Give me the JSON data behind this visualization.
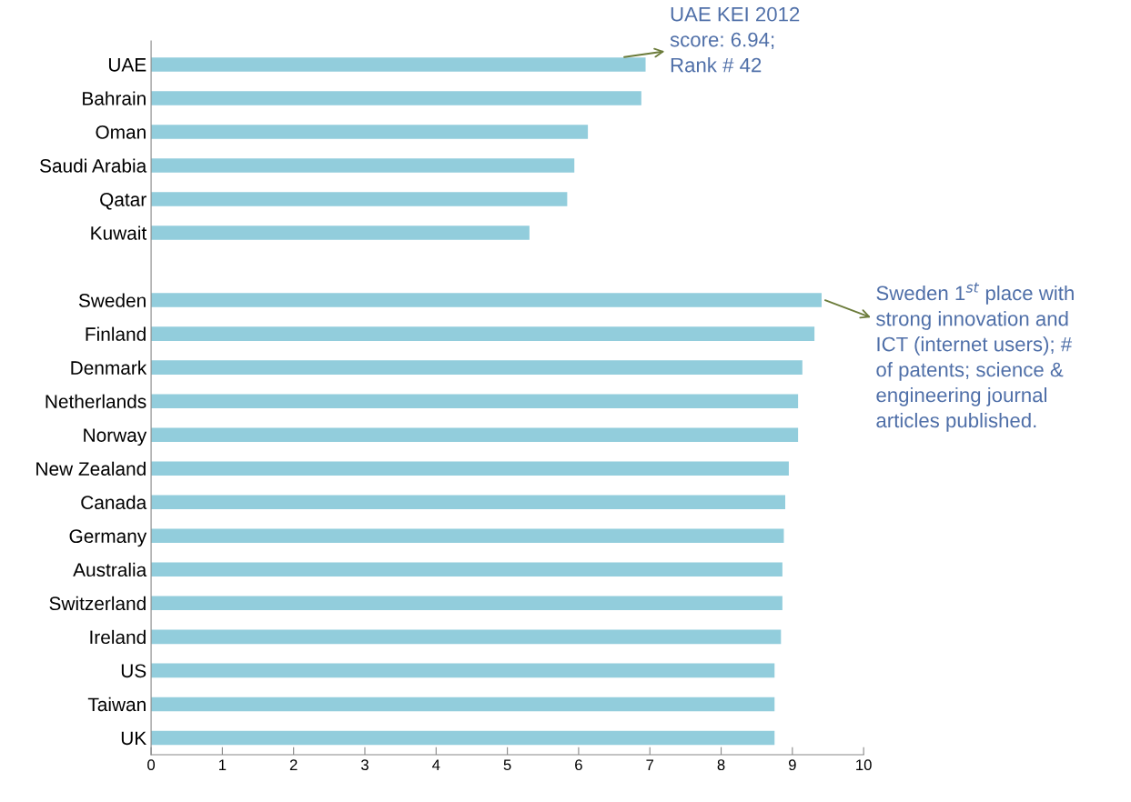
{
  "chart_data": {
    "type": "bar",
    "orientation": "horizontal",
    "categories": [
      "UAE",
      "Bahrain",
      "Oman",
      "Saudi Arabia",
      "Qatar",
      "Kuwait",
      null,
      "Sweden",
      "Finland",
      "Denmark",
      "Netherlands",
      "Norway",
      "New Zealand",
      "Canada",
      "Germany",
      "Australia",
      "Switzerland",
      "Ireland",
      "US",
      "Taiwan",
      "UK"
    ],
    "values": [
      6.94,
      6.88,
      6.13,
      5.94,
      5.84,
      5.31,
      null,
      9.41,
      9.31,
      9.14,
      9.08,
      9.08,
      8.95,
      8.9,
      8.88,
      8.86,
      8.86,
      8.84,
      8.75,
      8.75,
      8.75
    ],
    "color": "#92cddc",
    "xlim": [
      0,
      10
    ],
    "xticks": [
      0,
      1,
      2,
      3,
      4,
      5,
      6,
      7,
      8,
      9,
      10
    ],
    "grid": false,
    "legend": false,
    "annotations": [
      {
        "text": "UAE KEI 2012\nscore: 6.94;\nRank # 42",
        "x": 6.94,
        "y": "UAE"
      },
      {
        "text": "Sweden 1$^{st}$ place with\nstrong innovation and\nICT (internet users); #\nof patents; science &\nengineering journal\narticles published.",
        "x": 9.41,
        "y": "Sweden"
      }
    ]
  }
}
